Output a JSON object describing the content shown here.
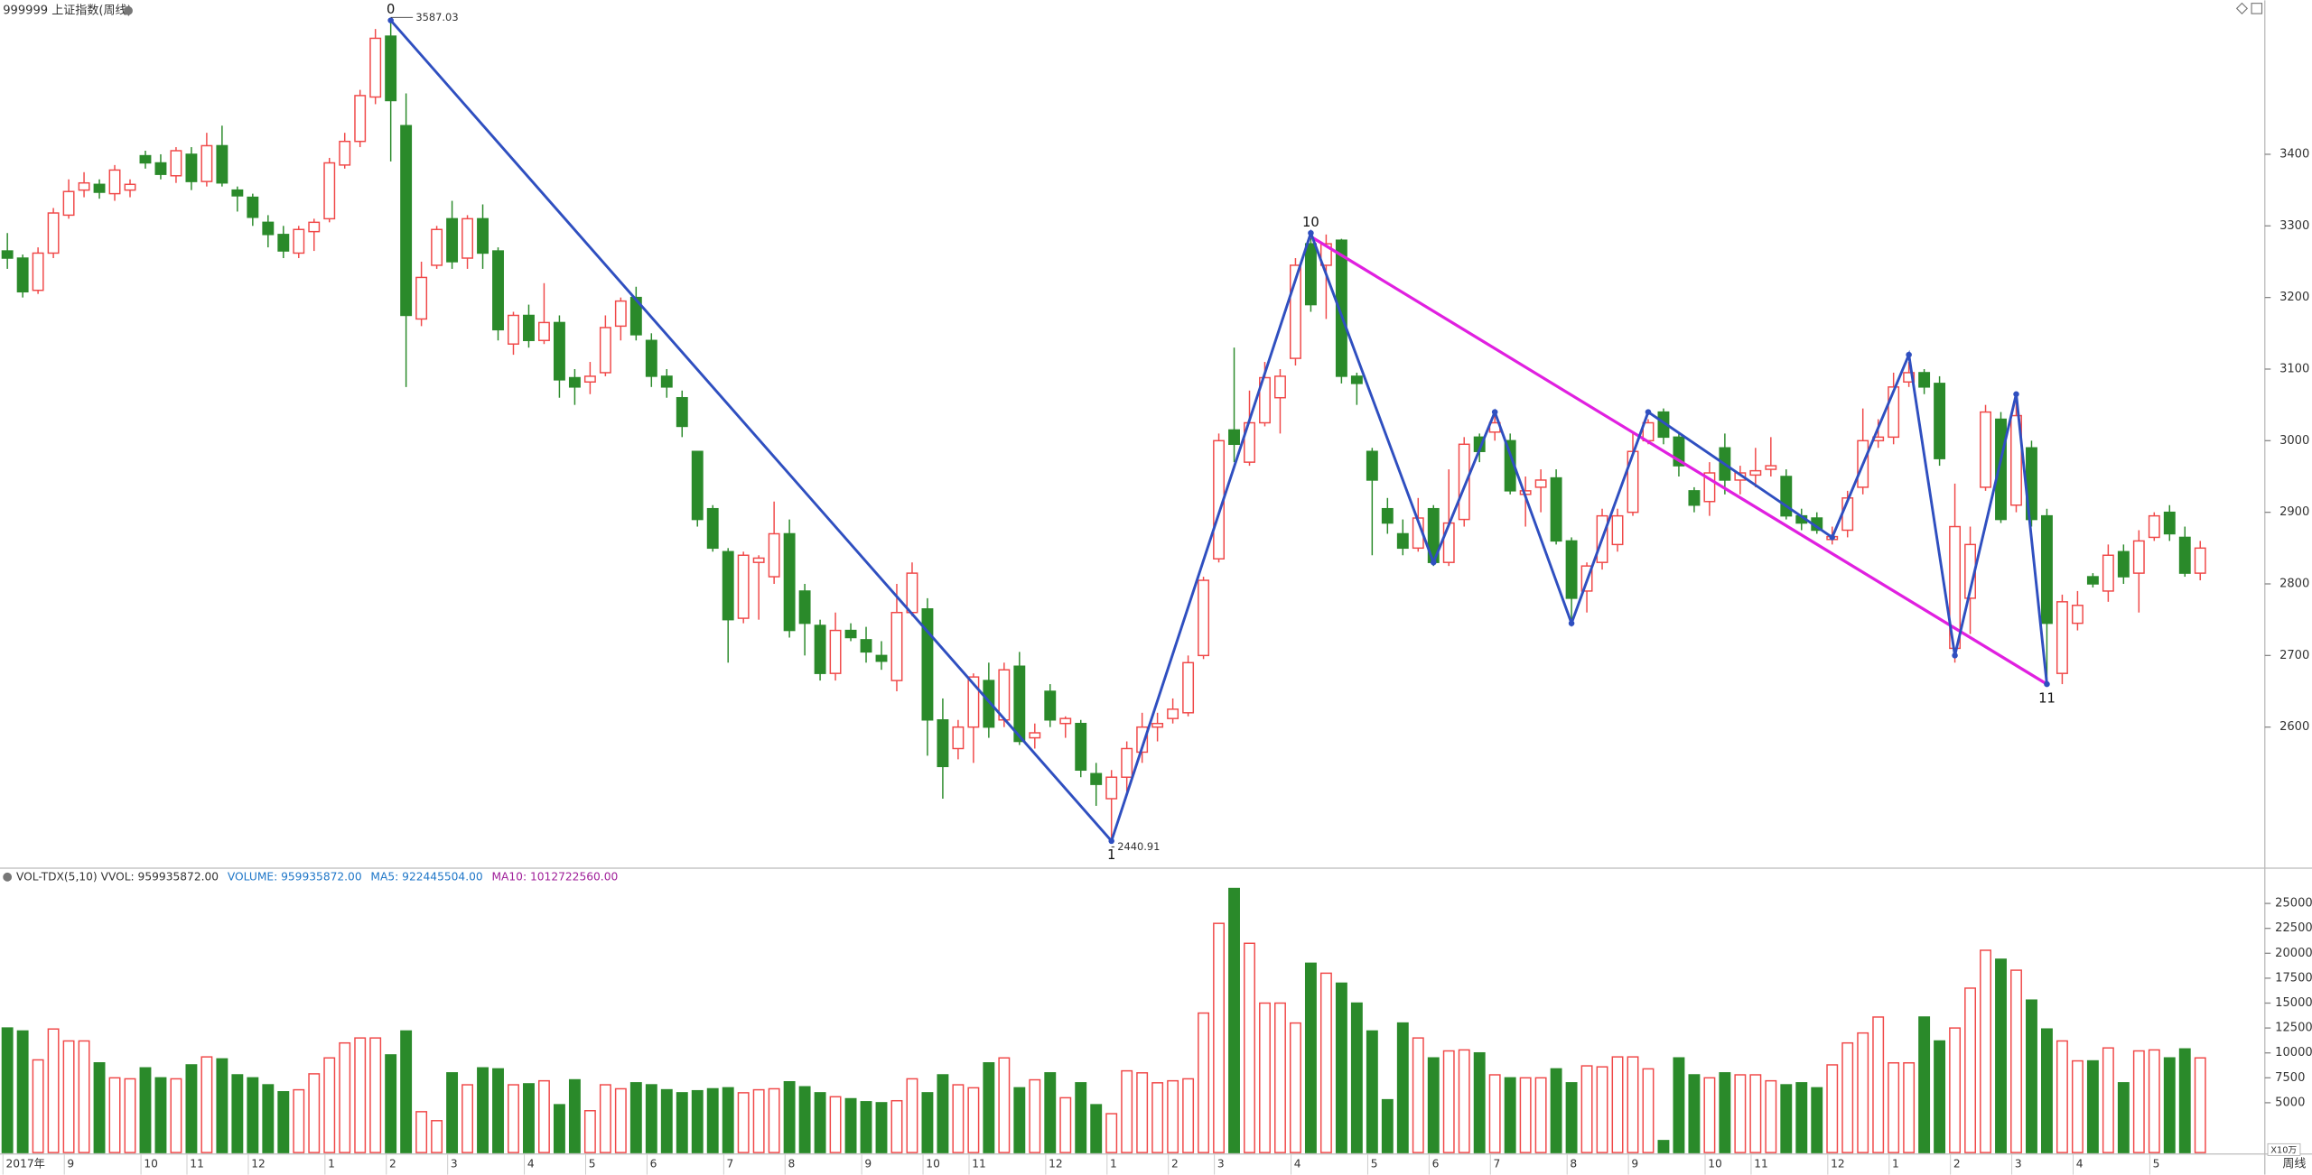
{
  "header": {
    "title": "999999 上证指数(周线)",
    "period": "周线"
  },
  "chart_data": [
    {
      "type": "candlestick",
      "up_color": "#f04848",
      "down_color": "#2a8a2a",
      "ylim": [
        2405,
        3615
      ],
      "yticks": [
        2600,
        2700,
        2800,
        2900,
        3000,
        3100,
        3200,
        3300,
        3400
      ],
      "candles": [
        [
          3265,
          3290,
          3240,
          3255
        ],
        [
          3255,
          3260,
          3200,
          3208
        ],
        [
          3210,
          3270,
          3205,
          3262
        ],
        [
          3262,
          3325,
          3255,
          3318
        ],
        [
          3315,
          3365,
          3310,
          3348
        ],
        [
          3350,
          3375,
          3340,
          3360
        ],
        [
          3358,
          3365,
          3338,
          3347
        ],
        [
          3345,
          3385,
          3335,
          3378
        ],
        [
          3350,
          3365,
          3340,
          3358
        ],
        [
          3398,
          3405,
          3380,
          3388
        ],
        [
          3388,
          3400,
          3365,
          3372
        ],
        [
          3370,
          3410,
          3360,
          3405
        ],
        [
          3400,
          3410,
          3350,
          3362
        ],
        [
          3362,
          3430,
          3355,
          3412
        ],
        [
          3412,
          3440,
          3355,
          3360
        ],
        [
          3350,
          3355,
          3320,
          3342
        ],
        [
          3340,
          3345,
          3300,
          3312
        ],
        [
          3305,
          3315,
          3270,
          3288
        ],
        [
          3288,
          3300,
          3255,
          3265
        ],
        [
          3262,
          3300,
          3255,
          3295
        ],
        [
          3292,
          3310,
          3265,
          3305
        ],
        [
          3310,
          3395,
          3305,
          3388
        ],
        [
          3385,
          3430,
          3380,
          3418
        ],
        [
          3418,
          3490,
          3410,
          3482
        ],
        [
          3480,
          3575,
          3470,
          3562
        ],
        [
          3565,
          3587.03,
          3390,
          3475
        ],
        [
          3440,
          3485,
          3075,
          3175
        ],
        [
          3170,
          3250,
          3160,
          3228
        ],
        [
          3245,
          3300,
          3240,
          3295
        ],
        [
          3310,
          3335,
          3240,
          3250
        ],
        [
          3255,
          3315,
          3240,
          3310
        ],
        [
          3310,
          3330,
          3240,
          3262
        ],
        [
          3265,
          3270,
          3140,
          3155
        ],
        [
          3135,
          3180,
          3120,
          3175
        ],
        [
          3175,
          3190,
          3130,
          3140
        ],
        [
          3140,
          3220,
          3135,
          3165
        ],
        [
          3165,
          3175,
          3060,
          3085
        ],
        [
          3088,
          3100,
          3050,
          3075
        ],
        [
          3082,
          3110,
          3065,
          3090
        ],
        [
          3095,
          3175,
          3090,
          3158
        ],
        [
          3160,
          3200,
          3140,
          3195
        ],
        [
          3200,
          3215,
          3140,
          3148
        ],
        [
          3140,
          3150,
          3075,
          3090
        ],
        [
          3090,
          3100,
          3060,
          3075
        ],
        [
          3060,
          3070,
          3005,
          3020
        ],
        [
          2985,
          2985,
          2880,
          2890
        ],
        [
          2905,
          2910,
          2845,
          2850
        ],
        [
          2845,
          2850,
          2690,
          2750
        ],
        [
          2752,
          2845,
          2745,
          2840
        ],
        [
          2830,
          2840,
          2750,
          2836
        ],
        [
          2810,
          2915,
          2800,
          2870
        ],
        [
          2870,
          2890,
          2725,
          2735
        ],
        [
          2790,
          2800,
          2700,
          2745
        ],
        [
          2742,
          2750,
          2665,
          2675
        ],
        [
          2675,
          2760,
          2665,
          2735
        ],
        [
          2735,
          2745,
          2720,
          2725
        ],
        [
          2722,
          2740,
          2690,
          2705
        ],
        [
          2700,
          2720,
          2680,
          2692
        ],
        [
          2665,
          2800,
          2650,
          2760
        ],
        [
          2760,
          2830,
          2755,
          2815
        ],
        [
          2765,
          2780,
          2560,
          2610
        ],
        [
          2610,
          2640,
          2500,
          2545
        ],
        [
          2570,
          2610,
          2555,
          2600
        ],
        [
          2600,
          2675,
          2550,
          2670
        ],
        [
          2665,
          2690,
          2585,
          2600
        ],
        [
          2610,
          2690,
          2600,
          2680
        ],
        [
          2685,
          2705,
          2575,
          2580
        ],
        [
          2585,
          2605,
          2570,
          2592
        ],
        [
          2650,
          2660,
          2600,
          2610
        ],
        [
          2605,
          2615,
          2585,
          2612
        ],
        [
          2605,
          2610,
          2530,
          2540
        ],
        [
          2535,
          2550,
          2490,
          2520
        ],
        [
          2500,
          2540,
          2440.91,
          2530
        ],
        [
          2530,
          2580,
          2510,
          2570
        ],
        [
          2565,
          2620,
          2550,
          2600
        ],
        [
          2600,
          2620,
          2580,
          2605
        ],
        [
          2612,
          2640,
          2605,
          2625
        ],
        [
          2620,
          2700,
          2615,
          2690
        ],
        [
          2700,
          2810,
          2695,
          2805
        ],
        [
          2835,
          3010,
          2830,
          3000
        ],
        [
          3015,
          3130,
          2970,
          2995
        ],
        [
          2970,
          3070,
          2965,
          3025
        ],
        [
          3025,
          3110,
          3020,
          3088
        ],
        [
          3060,
          3100,
          3010,
          3090
        ],
        [
          3115,
          3255,
          3105,
          3245
        ],
        [
          3275,
          3288,
          3180,
          3190
        ],
        [
          3245,
          3288,
          3170,
          3275
        ],
        [
          3280,
          3282,
          3080,
          3090
        ],
        [
          3090,
          3095,
          3050,
          3080
        ],
        [
          2985,
          2990,
          2840,
          2945
        ],
        [
          2905,
          2920,
          2870,
          2885
        ],
        [
          2870,
          2890,
          2840,
          2850
        ],
        [
          2850,
          2920,
          2845,
          2892
        ],
        [
          2905,
          2910,
          2825,
          2830
        ],
        [
          2830,
          2960,
          2825,
          2885
        ],
        [
          2890,
          3005,
          2880,
          2995
        ],
        [
          3005,
          3010,
          2970,
          2985
        ],
        [
          3012,
          3040,
          3000,
          3025
        ],
        [
          3000,
          3010,
          2925,
          2930
        ],
        [
          2925,
          2950,
          2880,
          2930
        ],
        [
          2935,
          2960,
          2900,
          2945
        ],
        [
          2948,
          2960,
          2855,
          2860
        ],
        [
          2860,
          2865,
          2745,
          2780
        ],
        [
          2790,
          2830,
          2760,
          2825
        ],
        [
          2830,
          2905,
          2820,
          2895
        ],
        [
          2855,
          2905,
          2845,
          2895
        ],
        [
          2900,
          3010,
          2895,
          2985
        ],
        [
          3000,
          3030,
          2995,
          3025
        ],
        [
          3040,
          3045,
          2995,
          3005
        ],
        [
          3005,
          3010,
          2950,
          2965
        ],
        [
          2930,
          2935,
          2900,
          2910
        ],
        [
          2915,
          2970,
          2895,
          2955
        ],
        [
          2990,
          3010,
          2925,
          2945
        ],
        [
          2945,
          2965,
          2925,
          2955
        ],
        [
          2952,
          2990,
          2935,
          2958
        ],
        [
          2960,
          3005,
          2950,
          2965
        ],
        [
          2950,
          2960,
          2890,
          2895
        ],
        [
          2895,
          2905,
          2875,
          2885
        ],
        [
          2892,
          2900,
          2870,
          2875
        ],
        [
          2862,
          2880,
          2855,
          2866
        ],
        [
          2875,
          2930,
          2865,
          2920
        ],
        [
          2935,
          3045,
          2925,
          3000
        ],
        [
          3000,
          3030,
          2990,
          3005
        ],
        [
          3005,
          3095,
          2995,
          3075
        ],
        [
          3082,
          3110,
          3075,
          3095
        ],
        [
          3095,
          3100,
          3065,
          3075
        ],
        [
          3080,
          3090,
          2965,
          2975
        ],
        [
          2710,
          2940,
          2690,
          2880
        ],
        [
          2780,
          2880,
          2730,
          2855
        ],
        [
          2935,
          3050,
          2930,
          3040
        ],
        [
          3030,
          3040,
          2885,
          2890
        ],
        [
          2910,
          3065,
          2900,
          3035
        ],
        [
          2990,
          3000,
          2880,
          2890
        ],
        [
          2895,
          2905,
          2660,
          2745
        ],
        [
          2675,
          2785,
          2660,
          2775
        ],
        [
          2745,
          2790,
          2735,
          2770
        ],
        [
          2810,
          2815,
          2795,
          2800
        ],
        [
          2790,
          2855,
          2775,
          2840
        ],
        [
          2845,
          2855,
          2800,
          2810
        ],
        [
          2815,
          2875,
          2760,
          2860
        ],
        [
          2865,
          2900,
          2860,
          2895
        ],
        [
          2900,
          2910,
          2860,
          2870
        ],
        [
          2865,
          2880,
          2810,
          2815
        ],
        [
          2815,
          2860,
          2805,
          2850
        ]
      ],
      "wave": {
        "color": "#2f4fc0",
        "x": [
          25,
          72,
          85,
          93,
          97,
          102,
          107,
          119,
          124,
          127,
          131,
          133
        ],
        "y": [
          3587.03,
          2440.91,
          3290,
          2830,
          3040,
          2745,
          3040,
          2865,
          3120,
          2700,
          3065,
          2660
        ],
        "labels": [
          "0",
          "1",
          "10",
          null,
          null,
          null,
          null,
          null,
          null,
          null,
          null,
          "11"
        ]
      },
      "trend": {
        "color": "#e020e0",
        "x": [
          85,
          133
        ],
        "y": [
          3285,
          2660
        ]
      }
    },
    {
      "type": "bar",
      "legend": [
        {
          "text": "VOL-TDX(5,10) VVOL: 959935872.00",
          "color": "#333333"
        },
        {
          "text": "VOLUME: 959935872.00",
          "color": "#1f77c8"
        },
        {
          "text": "MA5: 922445504.00",
          "color": "#1f77c8"
        },
        {
          "text": "MA10: 1012722560.00",
          "color": "#a0209a"
        }
      ],
      "unit_label": "X10万",
      "ylim": [
        0,
        27800
      ],
      "yticks": [
        5000,
        7500,
        10000,
        12500,
        15000,
        17500,
        20000,
        22500,
        25000
      ],
      "categories": [
        "2017年",
        null,
        null,
        null,
        "9",
        null,
        null,
        null,
        null,
        "10",
        null,
        null,
        "11",
        null,
        null,
        null,
        "12",
        null,
        null,
        null,
        null,
        "1",
        null,
        null,
        null,
        "2",
        null,
        null,
        null,
        "3",
        null,
        null,
        null,
        null,
        "4",
        null,
        null,
        null,
        "5",
        null,
        null,
        null,
        "6",
        null,
        null,
        null,
        null,
        "7",
        null,
        null,
        null,
        "8",
        null,
        null,
        null,
        null,
        "9",
        null,
        null,
        null,
        "10",
        null,
        null,
        "11",
        null,
        null,
        null,
        null,
        "12",
        null,
        null,
        null,
        "1",
        null,
        null,
        null,
        "2",
        null,
        null,
        "3",
        null,
        null,
        null,
        null,
        "4",
        null,
        null,
        null,
        null,
        "5",
        null,
        null,
        null,
        "6",
        null,
        null,
        null,
        "7",
        null,
        null,
        null,
        null,
        "8",
        null,
        null,
        null,
        "9",
        null,
        null,
        null,
        null,
        "10",
        null,
        null,
        "11",
        null,
        null,
        null,
        null,
        "12",
        null,
        null,
        null,
        "1",
        null,
        null,
        null,
        "2",
        null,
        null,
        null,
        "3",
        null,
        null,
        null,
        "4",
        null,
        null,
        null,
        null,
        "5",
        null,
        null,
        null
      ],
      "values": [
        12500,
        12200,
        9300,
        12400,
        11200,
        11200,
        9000,
        7500,
        7400,
        8500,
        7500,
        7400,
        8800,
        9600,
        9400,
        7800,
        7500,
        6800,
        6100,
        6300,
        7900,
        9500,
        11000,
        11500,
        11500,
        9800,
        12200,
        4100,
        3200,
        8000,
        6800,
        8500,
        8400,
        6800,
        6900,
        7200,
        4800,
        7300,
        4200,
        6800,
        6400,
        7000,
        6800,
        6300,
        6000,
        6200,
        6400,
        6500,
        6000,
        6300,
        6400,
        7100,
        6600,
        6000,
        5600,
        5400,
        5100,
        5000,
        5200,
        7400,
        6000,
        7800,
        6800,
        6500,
        9000,
        9500,
        6500,
        7300,
        8000,
        5500,
        7000,
        4800,
        3900,
        8200,
        8000,
        7000,
        7200,
        7400,
        14000,
        23000,
        26500,
        21000,
        15000,
        15000,
        13000,
        19000,
        18000,
        17000,
        15000,
        12200,
        5300,
        13000,
        11500,
        9500,
        10200,
        10300,
        10000,
        7800,
        7500,
        7500,
        7500,
        8400,
        7000,
        8700,
        8600,
        9600,
        9600,
        8400,
        1200,
        9500,
        7800,
        7500,
        8000,
        7800,
        7800,
        7200,
        6800,
        7000,
        6500,
        8800,
        11000,
        12000,
        13600,
        9000,
        9000,
        13600,
        11200,
        12500,
        16500,
        20300,
        19400,
        18300,
        15300,
        12400,
        11200,
        9200,
        9200,
        10500,
        7000,
        10200,
        10300,
        9500,
        10400,
        9500
      ]
    }
  ]
}
